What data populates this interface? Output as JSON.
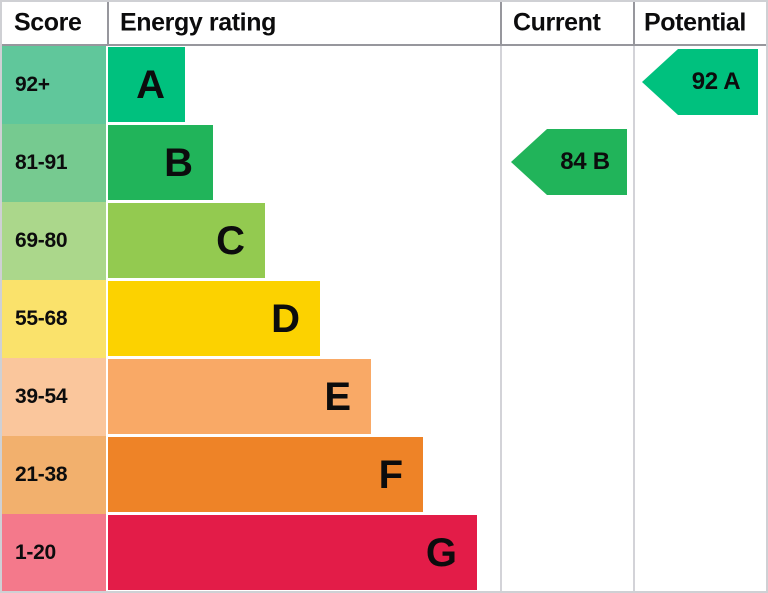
{
  "chart_data": {
    "type": "bar",
    "title": "Energy rating",
    "columns": [
      "Score",
      "Energy rating",
      "Current",
      "Potential"
    ],
    "bands": [
      {
        "band": "A",
        "score_range": "92+",
        "bar_color": "#00c17e",
        "score_cell_color": "#60c79b"
      },
      {
        "band": "B",
        "score_range": "81-91",
        "bar_color": "#21b45a",
        "score_cell_color": "#76ca90"
      },
      {
        "band": "C",
        "score_range": "69-80",
        "bar_color": "#93ca50",
        "score_cell_color": "#abd78b"
      },
      {
        "band": "D",
        "score_range": "55-68",
        "bar_color": "#fcd200",
        "score_cell_color": "#fae26b"
      },
      {
        "band": "E",
        "score_range": "39-54",
        "bar_color": "#f9a966",
        "score_cell_color": "#fac69c"
      },
      {
        "band": "F",
        "score_range": "21-38",
        "bar_color": "#ee8327",
        "score_cell_color": "#f2b06d"
      },
      {
        "band": "G",
        "score_range": "1-20",
        "bar_color": "#e31c48",
        "score_cell_color": "#f4798b"
      }
    ],
    "current": {
      "score": 84,
      "band": "B",
      "label": "84 B",
      "color": "#21b45a",
      "row": "B"
    },
    "potential": {
      "score": 92,
      "band": "A",
      "label": "92 A",
      "color": "#00c17e",
      "row": "A"
    },
    "legend_position": "none",
    "grid": false
  }
}
